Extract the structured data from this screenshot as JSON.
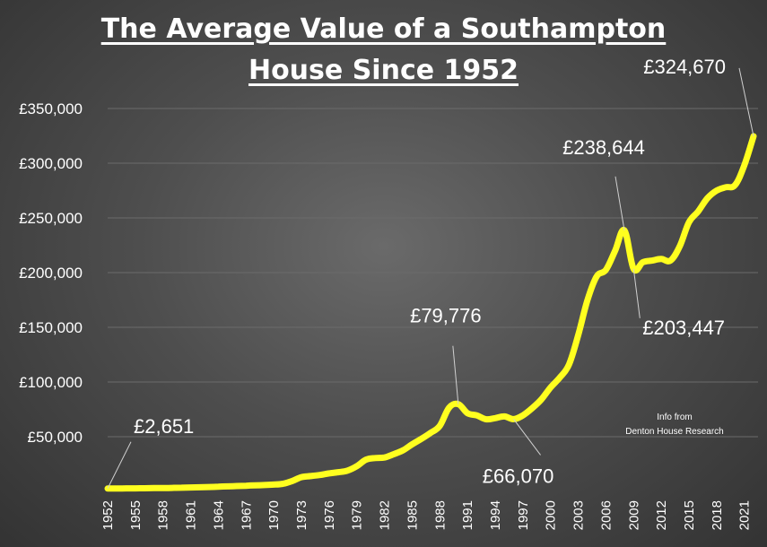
{
  "chart_data": {
    "type": "line",
    "title_line1": "The Average Value of a Southampton",
    "title_line2": "House Since 1952",
    "xlabel": "",
    "ylabel": "",
    "ylim": [
      0,
      350000
    ],
    "y_ticks": [
      50000,
      100000,
      150000,
      200000,
      250000,
      300000,
      350000
    ],
    "y_tick_labels": [
      "£50,000",
      "£100,000",
      "£150,000",
      "£200,000",
      "£250,000",
      "£300,000",
      "£350,000"
    ],
    "x_tick_labels": [
      "1952",
      "1955",
      "1958",
      "1961",
      "1964",
      "1967",
      "1970",
      "1973",
      "1976",
      "1979",
      "1982",
      "1985",
      "1988",
      "1991",
      "1994",
      "1997",
      "2000",
      "2003",
      "2006",
      "2009",
      "2012",
      "2015",
      "2018",
      "2021"
    ],
    "grid": true,
    "line_color": "#ffff1f",
    "x": [
      1952,
      1953,
      1954,
      1955,
      1956,
      1957,
      1958,
      1959,
      1960,
      1961,
      1962,
      1963,
      1964,
      1965,
      1966,
      1967,
      1968,
      1969,
      1970,
      1971,
      1972,
      1973,
      1974,
      1975,
      1976,
      1977,
      1978,
      1979,
      1980,
      1981,
      1982,
      1983,
      1984,
      1985,
      1986,
      1987,
      1988,
      1989,
      1990,
      1991,
      1992,
      1993,
      1994,
      1995,
      1996,
      1997,
      1998,
      1999,
      2000,
      2001,
      2002,
      2003,
      2004,
      2005,
      2006,
      2007,
      2008,
      2009,
      2010,
      2011,
      2012,
      2013,
      2014,
      2015,
      2016,
      2017,
      2018,
      2019,
      2020,
      2021,
      2022
    ],
    "y": [
      2651,
      2700,
      2750,
      2800,
      2900,
      3000,
      3100,
      3200,
      3400,
      3600,
      3800,
      4000,
      4300,
      4600,
      4900,
      5200,
      5500,
      5800,
      6200,
      7000,
      9500,
      13000,
      14000,
      15000,
      16500,
      17500,
      19000,
      23000,
      29000,
      30500,
      31000,
      34000,
      37500,
      43000,
      48000,
      53500,
      60000,
      76500,
      79776,
      71500,
      69500,
      66000,
      67000,
      68500,
      66070,
      69500,
      76000,
      84000,
      95000,
      104000,
      116000,
      143000,
      175000,
      196500,
      202500,
      220000,
      238644,
      203447,
      209500,
      211000,
      212500,
      211000,
      224000,
      246000,
      256000,
      268000,
      275000,
      278000,
      280000,
      298000,
      324670
    ],
    "annotations": [
      {
        "label": "£2,651",
        "x": 1952,
        "y": 2651
      },
      {
        "label": "£79,776",
        "x": 1990,
        "y": 79776
      },
      {
        "label": "£66,070",
        "x": 1996,
        "y": 66070
      },
      {
        "label": "£238,644",
        "x": 2008,
        "y": 238644
      },
      {
        "label": "£203,447",
        "x": 2009,
        "y": 203447
      },
      {
        "label": "£324,670",
        "x": 2022,
        "y": 324670
      }
    ],
    "note_line1": "Info from",
    "note_line2": "Denton House Research"
  }
}
